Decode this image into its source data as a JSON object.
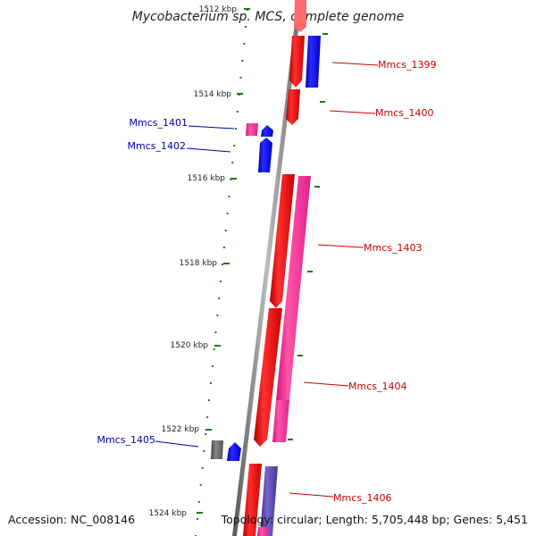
{
  "title": "Mycobacterium sp. MCS, complete genome",
  "footer": {
    "accession": "Accession: NC_008146",
    "summary": "Topology: circular; Length: 5,705,448 bp; Genes: 5,451"
  },
  "ticks": [
    "1512 kbp",
    "1514 kbp",
    "1516 kbp",
    "1518 kbp",
    "1520 kbp",
    "1522 kbp",
    "1524 kbp"
  ],
  "genes": {
    "g1399": "Mmcs_1399",
    "g1400": "Mmcs_1400",
    "g1401": "Mmcs_1401",
    "g1402": "Mmcs_1402",
    "g1403": "Mmcs_1403",
    "g1404": "Mmcs_1404",
    "g1405": "Mmcs_1405",
    "g1406": "Mmcs_1406"
  },
  "colors": {
    "forward_label": "#cc0000",
    "reverse_label": "#0000aa",
    "red_gene": "#ff0000",
    "blue_gene": "#0000ff",
    "pink_gene": "#ff3399",
    "gray_gene": "#666666",
    "purple_gene": "#5544aa",
    "backbone": "#888888",
    "tick": "#1a7a1a"
  }
}
